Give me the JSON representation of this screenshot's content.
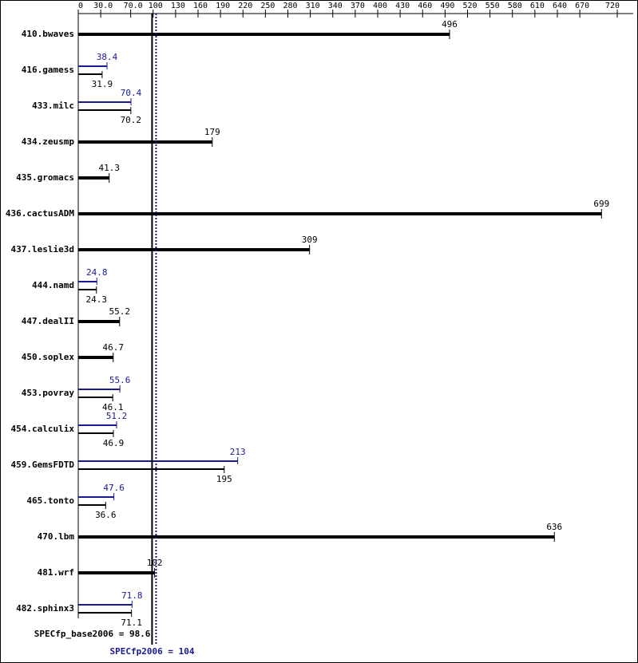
{
  "chart_data": {
    "type": "spec-bar",
    "categories": [
      "410.bwaves",
      "416.gamess",
      "433.milc",
      "434.zeusmp",
      "435.gromacs",
      "436.cactusADM",
      "437.leslie3d",
      "444.namd",
      "447.dealII",
      "450.soplex",
      "453.povray",
      "454.calculix",
      "459.GemsFDTD",
      "465.tonto",
      "470.lbm",
      "481.wrf",
      "482.sphinx3"
    ],
    "series": [
      {
        "color": "#000000",
        "values": [
          496,
          31.9,
          70.2,
          179,
          41.3,
          699,
          309,
          24.3,
          55.2,
          46.7,
          46.1,
          46.9,
          195,
          36.6,
          636,
          102,
          71.1
        ]
      },
      {
        "color": "#191996",
        "values": [
          null,
          38.4,
          70.4,
          null,
          null,
          null,
          null,
          24.8,
          null,
          null,
          55.6,
          51.2,
          213,
          47.6,
          null,
          null,
          71.8
        ]
      }
    ],
    "xlim": [
      0,
      720
    ],
    "xticks": [
      0,
      {
        "value": 30,
        "label": "30.0"
      },
      {
        "value": 70,
        "label": "70.0"
      },
      100,
      130,
      160,
      190,
      220,
      250,
      280,
      310,
      340,
      370,
      400,
      430,
      460,
      490,
      520,
      550,
      580,
      610,
      640,
      670,
      720
    ],
    "references": [
      {
        "label": "SPECfp_base2006 = 98.6",
        "value": 98.6,
        "color": "#000000"
      },
      {
        "label": "SPECfp2006 = 104",
        "value": 104,
        "color": "#191996"
      }
    ]
  }
}
